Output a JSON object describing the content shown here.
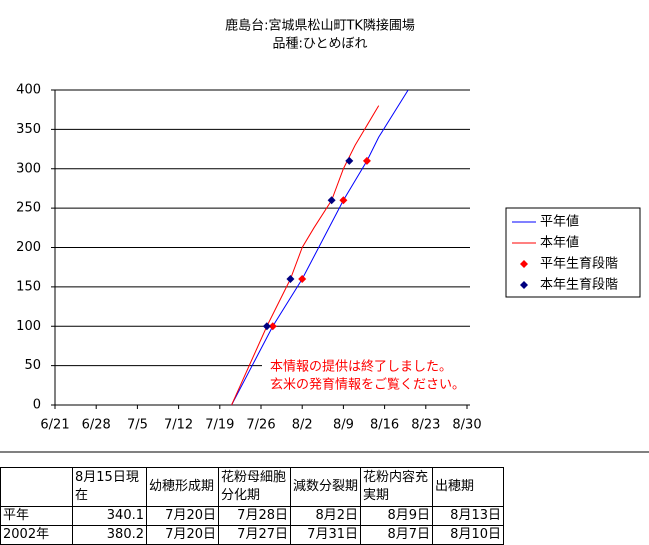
{
  "chart_data": {
    "type": "line",
    "title": [
      "鹿島台:宮城県松山町TK隣接圃場",
      "品種:ひとめぼれ"
    ],
    "annotation": [
      "本情報の提供は終了しました。",
      "玄米の発育情報をご覧ください。"
    ],
    "xlim": [
      "6/21",
      "8/30"
    ],
    "xticks": [
      "6/21",
      "6/28",
      "7/5",
      "7/12",
      "7/19",
      "7/26",
      "8/2",
      "8/9",
      "8/16",
      "8/23",
      "8/30"
    ],
    "ylim": [
      0,
      400
    ],
    "yticks": [
      0,
      50,
      100,
      150,
      200,
      250,
      300,
      350,
      400
    ],
    "grid": true,
    "series": [
      {
        "name": "平年値",
        "type": "line",
        "color": "#0000ff",
        "x": [
          "7/21",
          "7/28",
          "8/2",
          "8/9",
          "8/13",
          "8/15",
          "8/20"
        ],
        "values": [
          0,
          100,
          160,
          260,
          310,
          340.1,
          400
        ]
      },
      {
        "name": "本年値",
        "type": "line",
        "color": "#ff0000",
        "x": [
          "7/21",
          "7/24",
          "7/27",
          "7/31",
          "8/2",
          "8/4",
          "8/7",
          "8/9",
          "8/11",
          "8/13",
          "8/15"
        ],
        "values": [
          0,
          50,
          100,
          160,
          200,
          225,
          260,
          300,
          330,
          355,
          380.2
        ]
      },
      {
        "name": "平年生育段階",
        "type": "scatter",
        "color": "#ff0000",
        "x": [
          "7/28",
          "8/2",
          "8/9",
          "8/13"
        ],
        "values": [
          100,
          160,
          260,
          310
        ]
      },
      {
        "name": "本年生育段階",
        "type": "scatter",
        "color": "#000080",
        "x": [
          "7/27",
          "7/31",
          "8/7",
          "8/10"
        ],
        "values": [
          100,
          160,
          260,
          310
        ]
      }
    ]
  },
  "table": {
    "header": [
      "",
      "8月15日現在",
      "幼穂形成期",
      "花粉母細胞分化期",
      "減数分裂期",
      "花粉内容充実期",
      "出穂期"
    ],
    "rows": [
      [
        "平年",
        "340.1",
        "7月20日",
        "7月28日",
        "8月2日",
        "8月9日",
        "8月13日"
      ],
      [
        "2002年",
        "380.2",
        "7月20日",
        "7月27日",
        "7月31日",
        "8月7日",
        "8月10日"
      ]
    ]
  }
}
